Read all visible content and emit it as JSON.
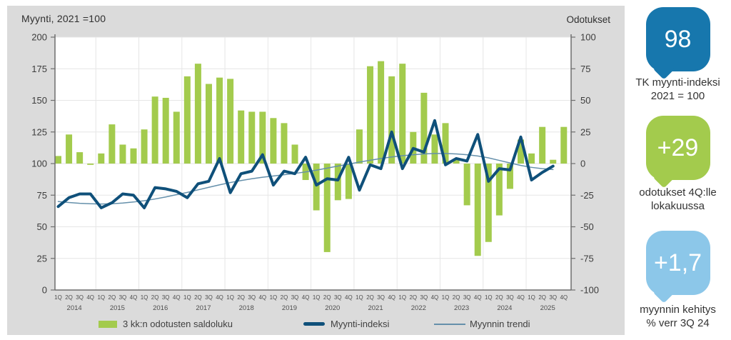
{
  "chart_data": {
    "type": "bar+line",
    "title": "Myynti,  2021 =100",
    "right_axis_title": "Odotukset",
    "years": [
      "2014",
      "2015",
      "2016",
      "2017",
      "2018",
      "2019",
      "2020",
      "2021",
      "2022",
      "2023",
      "2024",
      "2025"
    ],
    "quarters": [
      "1Q",
      "2Q",
      "3Q",
      "4Q"
    ],
    "left_axis": {
      "min": 0,
      "max": 200,
      "step": 25,
      "ticks": [
        "0",
        "25",
        "50",
        "75",
        "100",
        "125",
        "150",
        "175",
        "200"
      ]
    },
    "right_axis": {
      "min": -100,
      "max": 100,
      "step": 25,
      "ticks": [
        "-100",
        "-75",
        "-50",
        "-25",
        "0",
        "25",
        "50",
        "75",
        "100"
      ]
    },
    "grid": true,
    "legend_position": "bottom",
    "series": [
      {
        "name": "3 kk:n odotusten saldoluku",
        "type": "bar",
        "axis": "right",
        "color": "#a3cb4d",
        "values": [
          6,
          23,
          9,
          -1,
          8,
          31,
          15,
          12,
          27,
          53,
          52,
          41,
          69,
          79,
          63,
          68,
          67,
          42,
          41,
          41,
          36,
          32,
          15,
          -13,
          -37,
          -70,
          -29,
          -28,
          27,
          77,
          81,
          69,
          79,
          25,
          56,
          23,
          32,
          4,
          -33,
          -73,
          -62,
          -41,
          -20,
          19,
          8,
          29,
          3,
          29
        ]
      },
      {
        "name": "Myynti-indeksi",
        "type": "line",
        "axis": "left",
        "color": "#0f507a",
        "stroke_width": 4,
        "values": [
          66,
          73,
          76,
          76,
          65,
          69,
          76,
          75,
          65,
          81,
          80,
          78,
          73,
          84,
          86,
          104,
          77,
          92,
          94,
          107,
          83,
          94,
          92,
          105,
          83,
          88,
          87,
          105,
          79,
          99,
          96,
          125,
          96,
          112,
          109,
          134,
          99,
          104,
          102,
          123,
          86,
          96,
          95,
          121,
          87,
          93,
          98,
          null
        ]
      },
      {
        "name": "Myynnin trendi",
        "type": "line",
        "axis": "left",
        "color": "#6590ab",
        "stroke_width": 1.5,
        "values": [
          70,
          69.2,
          68.6,
          68.2,
          68,
          68.2,
          68.8,
          69.6,
          70.6,
          72,
          73.6,
          75.4,
          77.2,
          79.2,
          81.2,
          83.2,
          85,
          86.6,
          88,
          89.2,
          90.2,
          91.2,
          92.2,
          93.4,
          94.8,
          96.4,
          98,
          99.6,
          101.2,
          102.6,
          104,
          105.2,
          106.2,
          107,
          107.6,
          108,
          108,
          107.6,
          107,
          106,
          104.5,
          102.5,
          100.5,
          98.5,
          97,
          96,
          95.3,
          null
        ]
      }
    ]
  },
  "legend": {
    "items": [
      {
        "label": "3 kk:n odotusten saldoluku"
      },
      {
        "label": "Myynti-indeksi"
      },
      {
        "label": "Myynnin trendi"
      }
    ]
  },
  "panel": {
    "badges": [
      {
        "value": "98",
        "color": "#1777ad",
        "label_line1": "TK myynti-indeksi",
        "label_line2": "2021 = 100"
      },
      {
        "value": "+29",
        "color": "#a3cb4d",
        "label_line1": "odotukset 4Q:lle",
        "label_line2": "lokakuussa"
      },
      {
        "value": "+1,7",
        "color": "#8cc7e9",
        "label_line1": "myynnin kehitys",
        "label_line2": "% verr 3Q 24"
      }
    ]
  },
  "colors": {
    "card_bg": "#dbdbdb",
    "plot_bg": "#ffffff",
    "grid": "#e6e6e6",
    "axis": "#6e6e6e",
    "text": "#3c3c3c",
    "tick_text": "#3c3c3c",
    "small_text": "#4f4f4f"
  }
}
